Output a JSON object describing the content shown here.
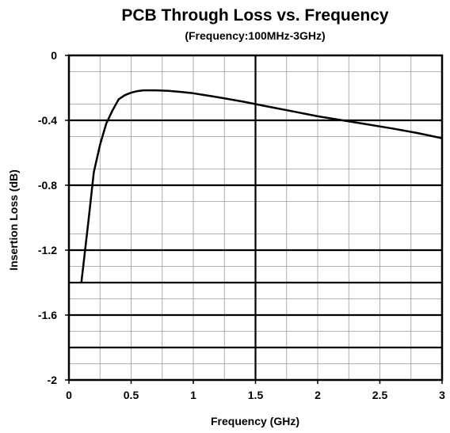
{
  "chart_data": {
    "type": "line",
    "title": "PCB Through Loss vs. Frequency",
    "subtitle": "(Frequency:100MHz-3GHz)",
    "xlabel": "Frequency (GHz)",
    "ylabel": "Insertion Loss (dB)",
    "xlim": [
      0,
      3
    ],
    "ylim": [
      -2,
      0
    ],
    "xticks": [
      0,
      0.5,
      1,
      1.5,
      2,
      2.5,
      3
    ],
    "xtick_labels": [
      "0",
      "0.5",
      "1",
      "1.5",
      "2",
      "2.5",
      "3"
    ],
    "yticks": [
      0,
      -0.4,
      -0.8,
      -1.2,
      -1.6,
      -2
    ],
    "ytick_labels": [
      "0",
      "-0.4",
      "-0.8",
      "-1.2",
      "-1.6",
      "-2"
    ],
    "grid": true,
    "bold_hlines": [
      -0.4,
      -0.8,
      -1.2,
      -1.4,
      -1.6,
      -1.8
    ],
    "bold_vlines": [
      1.5
    ],
    "series": [
      {
        "color": "#000000",
        "x": [
          0.1,
          0.13,
          0.16,
          0.2,
          0.25,
          0.3,
          0.35,
          0.4,
          0.45,
          0.5,
          0.55,
          0.6,
          0.7,
          0.8,
          0.9,
          1.0,
          1.2,
          1.4,
          1.6,
          1.8,
          2.0,
          2.2,
          2.4,
          2.6,
          2.8,
          3.0
        ],
        "y": [
          -1.4,
          -1.2,
          -1.0,
          -0.72,
          -0.55,
          -0.42,
          -0.34,
          -0.27,
          -0.245,
          -0.23,
          -0.22,
          -0.215,
          -0.215,
          -0.218,
          -0.225,
          -0.233,
          -0.258,
          -0.285,
          -0.315,
          -0.345,
          -0.375,
          -0.4,
          -0.425,
          -0.45,
          -0.478,
          -0.51
        ]
      }
    ]
  }
}
